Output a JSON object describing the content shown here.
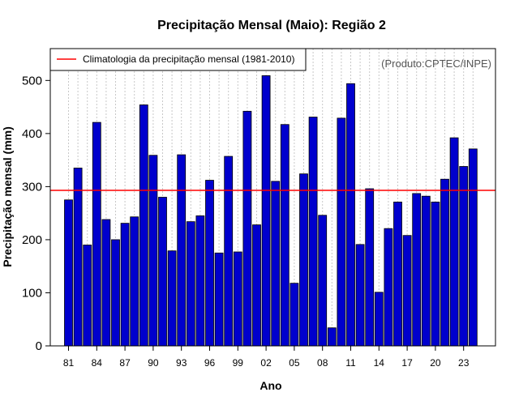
{
  "chart_data": {
    "type": "bar",
    "title": "Precipitação Mensal (Maio): Região 2",
    "xlabel": "Ano",
    "ylabel": "Precipitação mensal (mm)",
    "ylim": [
      0,
      560
    ],
    "yticks": [
      0,
      100,
      200,
      300,
      400,
      500
    ],
    "categories": [
      "81",
      "82",
      "83",
      "84",
      "85",
      "86",
      "87",
      "88",
      "89",
      "90",
      "91",
      "92",
      "93",
      "94",
      "95",
      "96",
      "97",
      "98",
      "99",
      "00",
      "01",
      "02",
      "03",
      "04",
      "05",
      "06",
      "07",
      "08",
      "09",
      "10",
      "11",
      "12",
      "13",
      "14",
      "15",
      "16",
      "17",
      "18",
      "19",
      "20",
      "21",
      "22",
      "23",
      "24"
    ],
    "x_tick_labels": [
      "81",
      "84",
      "87",
      "90",
      "93",
      "96",
      "99",
      "02",
      "05",
      "08",
      "11",
      "14",
      "17",
      "20",
      "23"
    ],
    "values": [
      275,
      335,
      190,
      421,
      238,
      200,
      231,
      243,
      454,
      359,
      280,
      179,
      360,
      234,
      245,
      312,
      175,
      357,
      177,
      442,
      228,
      509,
      310,
      417,
      118,
      324,
      431,
      246,
      34,
      429,
      494,
      191,
      296,
      101,
      221,
      271,
      208,
      287,
      282,
      271,
      314,
      392,
      338,
      371
    ],
    "climatology": {
      "label": "Climatologia da precipitação mensal (1981-2010)",
      "value": 293,
      "color": "#ff0000"
    },
    "bar_color": "#0000cd",
    "grid": "vertical-dotted",
    "legend_position": "top-left",
    "credit": "(Produto:CPTEC/INPE)"
  }
}
